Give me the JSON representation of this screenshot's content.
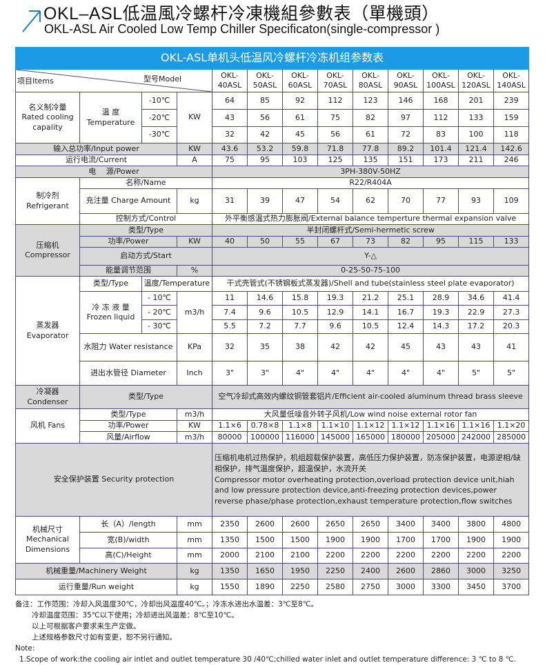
{
  "header": {
    "title_cn": "OKL–ASL低温風冷螺杆冷凍機組參數表（單機頭）",
    "title_en": "OKL-ASL Air Cooled Low Temp Chiller Specificaton(single-compressor )",
    "accent_color": "#1b9be3"
  },
  "table": {
    "banner": "OKL-ASL单机头低温风冷螺杆冷冻机组参数表",
    "items_label": "项目Items",
    "model_label": "型号Model",
    "models": [
      "OKL-40ASL",
      "OKL-50ASL",
      "OKL-60ASL",
      "OKL-70ASL",
      "OKL-80ASL",
      "OKL-90ASL",
      "OKL-100ASL",
      "OKL-120ASL",
      "OKL-140ASL"
    ],
    "cooling": {
      "label": "名义制冷量 Rated cooling capality",
      "temp_label": "温 度 Temperature",
      "unit": "KW",
      "t10": "-10℃",
      "t20": "-20℃",
      "t30": "-30℃",
      "v10": [
        "64",
        "85",
        "92",
        "112",
        "123",
        "146",
        "168",
        "201",
        "239"
      ],
      "v20": [
        "43",
        "56",
        "61",
        "75",
        "82",
        "97",
        "112",
        "133",
        "159"
      ],
      "v30": [
        "32",
        "42",
        "45",
        "56",
        "61",
        "72",
        "83",
        "100",
        "118"
      ]
    },
    "input_power": {
      "label": "输入总功率/Input power",
      "unit": "KW",
      "values": [
        "43.6",
        "53.2",
        "59.8",
        "71.8",
        "77.8",
        "89.2",
        "101.4",
        "121.4",
        "142.6"
      ]
    },
    "current": {
      "label": "运行电流/Current",
      "unit": "A",
      "values": [
        "75",
        "95",
        "103",
        "125",
        "135",
        "151",
        "173",
        "211",
        "246"
      ]
    },
    "power": {
      "label": "电　 源/Power",
      "value": "3PH-380V-50HZ"
    },
    "refrigerant": {
      "label": "制冷剂 Refrigerant",
      "name_label": "名称/Name",
      "name_value": "R22/R404A",
      "charge_label": "充注量 Charge Amount",
      "charge_unit": "kg",
      "charge_values": [
        "31",
        "39",
        "47",
        "54",
        "62",
        "70",
        "77",
        "93",
        "109"
      ],
      "control_label": "控制方式/Control",
      "control_value": "外平衡感温式热力膨胀阀/External balance temperture thermal expansion valve"
    },
    "compressor": {
      "label": "压缩机 Compressor",
      "type_label": "类型/Type",
      "type_value": "半封闭螺杆式/Semi-hermetic screw",
      "power_label": "功率/Power",
      "power_unit": "KW",
      "power_values": [
        "40",
        "50",
        "55",
        "67",
        "73",
        "82",
        "95",
        "115",
        "133"
      ],
      "start_label": "启动方式/Start",
      "start_value": "Y-△",
      "energy_label": "能量调节范围",
      "energy_unit": "%",
      "energy_value": "0-25-50-75-100"
    },
    "evaporator": {
      "label": "蒸发器 Evaporator",
      "type_label": "类型/Type",
      "temp_label": "温度/Temperature",
      "type_value": "干式壳管式(不锈钢板式蒸发器)/Shell and tube(stainless steel plate evaporator)",
      "frozen_label": "冷 冻 液 量 Frozen liquid",
      "frozen_unit": "m3/h",
      "t10": "- 10℃",
      "t20": "- 20℃",
      "t30": "- 30℃",
      "v10": [
        "11",
        "14.6",
        "15.8",
        "19.3",
        "21.2",
        "25.1",
        "28.9",
        "34.6",
        "41.4"
      ],
      "v20": [
        "7.4",
        "9.6",
        "10.5",
        "12.9",
        "14.1",
        "16.7",
        "19.3",
        "22.9",
        "27.3"
      ],
      "v30": [
        "5.5",
        "7.2",
        "7.7",
        "9.6",
        "10.5",
        "12.4",
        "14.3",
        "17.2",
        "20.3"
      ],
      "water_label": "水阻力 Water resistance",
      "water_unit": "KPa",
      "water_values": [
        "32",
        "35",
        "38",
        "42",
        "42",
        "45",
        "43",
        "43",
        "41"
      ],
      "dia_label": "进出水管径 Diameter",
      "dia_unit": "Inch",
      "dia_values": [
        "3\"",
        "3\"",
        "4\"",
        "4\"",
        "4\"",
        "4\"",
        "4\"",
        "5\"",
        "5\""
      ]
    },
    "condenser": {
      "label": "冷凝器 Condenser",
      "type_label": "类型/Type",
      "type_value": "空气冷却式高效内螺纹铜管套铝片/Efficient air-cooled aluminum thread brass sleeve"
    },
    "fans": {
      "label": "风机 Fans",
      "type_label": "类型/Type",
      "type_unit": "m3/h",
      "type_value": "大风量低噪音外转子风机/Low wind noise external rotor fan",
      "power_label": "功率/Power",
      "power_unit": "KW",
      "power_values": [
        "1.1×6",
        "0.78×8",
        "1.1×8",
        "1.1×10",
        "1.1×12",
        "1.1×12",
        "1.1×16",
        "1.1×16",
        "1.1×20"
      ],
      "airflow_label": "风量/Airflow",
      "airflow_unit": "m3/h",
      "airflow_values": [
        "80000",
        "100000",
        "116000",
        "145000",
        "165000",
        "180000",
        "205000",
        "242000",
        "285000"
      ]
    },
    "security": {
      "label": "安全保护装置 Security protection",
      "text_cn": "压缩机电机过热保护，机组超载保护装置，高低压力保护装置，防冻保护装置，电源逆相/缺相保护，排气温度保护，超温保护，水流开关",
      "text_en": "Compressor motor overheating protection,overload protection device unit,hiah and low pressure protection device,anti-freezing protection devices,power reverse phase/phase protection,exhaust temperature protection,flow switches"
    },
    "dimensions": {
      "label": "机械尺寸 Mechanical Dimensions",
      "length_label": "长（A）/length",
      "width_label": "宽(B)/width",
      "height_label": "高(C)/Height",
      "unit": "mm",
      "length": [
        "2350",
        "2600",
        "2600",
        "2650",
        "2650",
        "3400",
        "3400",
        "3800",
        "4800"
      ],
      "width": [
        "1350",
        "1500",
        "1500",
        "1900",
        "1900",
        "1700",
        "1700",
        "1900",
        "1900"
      ],
      "height": [
        "2000",
        "2100",
        "2100",
        "2200",
        "2200",
        "2200",
        "2200",
        "2200",
        "2200"
      ]
    },
    "machine_weight": {
      "label": "机械重量/Machinery Weight",
      "unit": "kg",
      "values": [
        "1350",
        "1650",
        "1950",
        "2250",
        "2400",
        "2600",
        "2860",
        "3000",
        "3250"
      ]
    },
    "run_weight": {
      "label": "运行重量/Run weight",
      "unit": "kg",
      "values": [
        "1550",
        "1890",
        "2250",
        "2580",
        "2750",
        "3000",
        "3300",
        "3450",
        "3700"
      ]
    }
  },
  "notes": {
    "cn": [
      "备注：工作范围：冷却入风温度30℃，冷却出风温度40℃。；冷冻水进出水温差：3℃至8℃。",
      "冷却温度范围：35℃以下使用；冷却进出风温差：8℃至10℃。",
      "以上可根据客户要求来生产定做。",
      "上述规格参数尺寸如有变更，恕不另行通知。"
    ],
    "note_label": "Note:",
    "en": [
      "1.Scope of work:the cooling air intlet and  outlet temperature 30 /40℃;chilled water inlet and outlet temperature difference: 3 ℃ to 8 ℃."
    ]
  }
}
